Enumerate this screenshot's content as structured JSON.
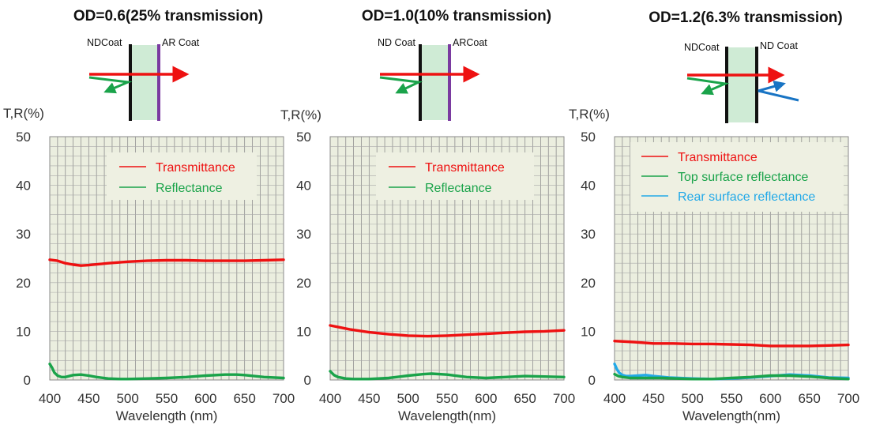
{
  "colors": {
    "transmittance": "#ee1111",
    "top_reflectance": "#1aa34a",
    "rear_reflectance": "#22a9e8",
    "plot_background": "#ebeedf",
    "grid": "#8f8f8f",
    "glass": "#cfebd5",
    "coat_black": "#111111",
    "coat_purple": "#7a3aa0",
    "blue_arrow": "#1874c4",
    "axis_text": "#333333"
  },
  "panels": [
    {
      "title": "OD=0.6(25% transmission)",
      "diagram": {
        "type": "nd_ar",
        "left_label": "NDCoat",
        "right_label": "AR Coat"
      },
      "ylabel": "T,R(%)",
      "xlabel": "Wavelength (nm)",
      "legend": [
        "Transmittance",
        "Reflectance"
      ]
    },
    {
      "title": "OD=1.0(10% transmission)",
      "diagram": {
        "type": "nd_ar",
        "left_label": "ND Coat",
        "right_label": "ARCoat"
      },
      "ylabel": "T,R(%)",
      "xlabel": "Wavelength(nm)",
      "legend": [
        "Transmittance",
        "Reflectance"
      ]
    },
    {
      "title": "OD=1.2(6.3% transmission)",
      "diagram": {
        "type": "nd_nd",
        "left_label": "NDCoat",
        "right_label": "ND Coat"
      },
      "ylabel": "T,R(%)",
      "xlabel": "Wavelength(nm)",
      "legend": [
        "Transmittance",
        "Top  surface  reflectance",
        "Rear surface reflectance"
      ]
    }
  ],
  "chart_data": [
    {
      "type": "line",
      "title": "OD=0.6(25% transmission)",
      "xlabel": "Wavelength (nm)",
      "ylabel": "T,R(%)",
      "xlim": [
        400,
        700
      ],
      "ylim": [
        0,
        50
      ],
      "xticks": [
        400,
        450,
        500,
        550,
        600,
        650,
        700
      ],
      "yticks": [
        0,
        10,
        20,
        30,
        40,
        50
      ],
      "grid": true,
      "legend_position": "top-center",
      "series": [
        {
          "name": "Transmittance",
          "color": "#ee1111",
          "x": [
            400,
            410,
            420,
            430,
            440,
            450,
            475,
            500,
            525,
            550,
            575,
            600,
            625,
            650,
            675,
            700
          ],
          "y": [
            24.7,
            24.5,
            24.0,
            23.7,
            23.5,
            23.6,
            24.0,
            24.3,
            24.5,
            24.6,
            24.6,
            24.5,
            24.5,
            24.5,
            24.6,
            24.7
          ]
        },
        {
          "name": "Reflectance",
          "color": "#1aa34a",
          "x": [
            400,
            403,
            406,
            410,
            415,
            420,
            430,
            440,
            450,
            460,
            475,
            490,
            500,
            525,
            550,
            575,
            600,
            625,
            640,
            650,
            675,
            700
          ],
          "y": [
            3.3,
            2.5,
            1.5,
            0.9,
            0.6,
            0.6,
            1.0,
            1.1,
            0.9,
            0.6,
            0.3,
            0.2,
            0.2,
            0.3,
            0.4,
            0.6,
            0.9,
            1.1,
            1.1,
            1.0,
            0.6,
            0.4
          ]
        }
      ]
    },
    {
      "type": "line",
      "title": "OD=1.0(10% transmission)",
      "xlabel": "Wavelength(nm)",
      "ylabel": "T,R(%)",
      "xlim": [
        400,
        700
      ],
      "ylim": [
        0,
        50
      ],
      "xticks": [
        400,
        450,
        500,
        550,
        600,
        650,
        700
      ],
      "yticks": [
        0,
        10,
        20,
        30,
        40,
        50
      ],
      "grid": true,
      "legend_position": "top-center",
      "series": [
        {
          "name": "Transmittance",
          "color": "#ee1111",
          "x": [
            400,
            410,
            425,
            450,
            475,
            500,
            525,
            550,
            575,
            600,
            625,
            650,
            675,
            700
          ],
          "y": [
            11.2,
            10.9,
            10.4,
            9.8,
            9.4,
            9.1,
            9.0,
            9.1,
            9.3,
            9.5,
            9.7,
            9.9,
            10.0,
            10.2
          ]
        },
        {
          "name": "Reflectance",
          "color": "#1aa34a",
          "x": [
            400,
            405,
            410,
            420,
            430,
            450,
            475,
            500,
            520,
            530,
            550,
            575,
            600,
            625,
            650,
            675,
            700
          ],
          "y": [
            1.8,
            1.0,
            0.6,
            0.3,
            0.2,
            0.2,
            0.4,
            0.9,
            1.2,
            1.3,
            1.1,
            0.6,
            0.4,
            0.6,
            0.8,
            0.7,
            0.6
          ]
        }
      ]
    },
    {
      "type": "line",
      "title": "OD=1.2(6.3% transmission)",
      "xlabel": "Wavelength(nm)",
      "ylabel": "T,R(%)",
      "xlim": [
        400,
        700
      ],
      "ylim": [
        0,
        50
      ],
      "xticks": [
        400,
        450,
        500,
        550,
        600,
        650,
        700
      ],
      "yticks": [
        0,
        10,
        20,
        30,
        40,
        50
      ],
      "grid": true,
      "legend_position": "top-center",
      "series": [
        {
          "name": "Transmittance",
          "color": "#ee1111",
          "x": [
            400,
            425,
            450,
            475,
            500,
            525,
            550,
            575,
            600,
            625,
            650,
            675,
            700
          ],
          "y": [
            8.0,
            7.8,
            7.5,
            7.5,
            7.4,
            7.4,
            7.3,
            7.2,
            7.0,
            7.0,
            7.0,
            7.1,
            7.2
          ]
        },
        {
          "name": "Top  surface  reflectance",
          "color": "#1aa34a",
          "x": [
            400,
            405,
            410,
            420,
            440,
            460,
            480,
            500,
            525,
            550,
            575,
            600,
            625,
            650,
            675,
            700
          ],
          "y": [
            1.2,
            0.8,
            0.6,
            0.4,
            0.4,
            0.4,
            0.3,
            0.2,
            0.2,
            0.4,
            0.6,
            0.9,
            0.9,
            0.7,
            0.4,
            0.2
          ]
        },
        {
          "name": "Rear surface reflectance",
          "color": "#22a9e8",
          "x": [
            400,
            403,
            406,
            410,
            415,
            420,
            430,
            440,
            450,
            470,
            500,
            525,
            550,
            575,
            600,
            625,
            650,
            675,
            700
          ],
          "y": [
            3.3,
            2.2,
            1.5,
            1.0,
            0.8,
            0.8,
            0.9,
            1.0,
            0.8,
            0.5,
            0.3,
            0.2,
            0.3,
            0.5,
            0.8,
            1.1,
            0.9,
            0.5,
            0.4
          ]
        }
      ]
    }
  ]
}
